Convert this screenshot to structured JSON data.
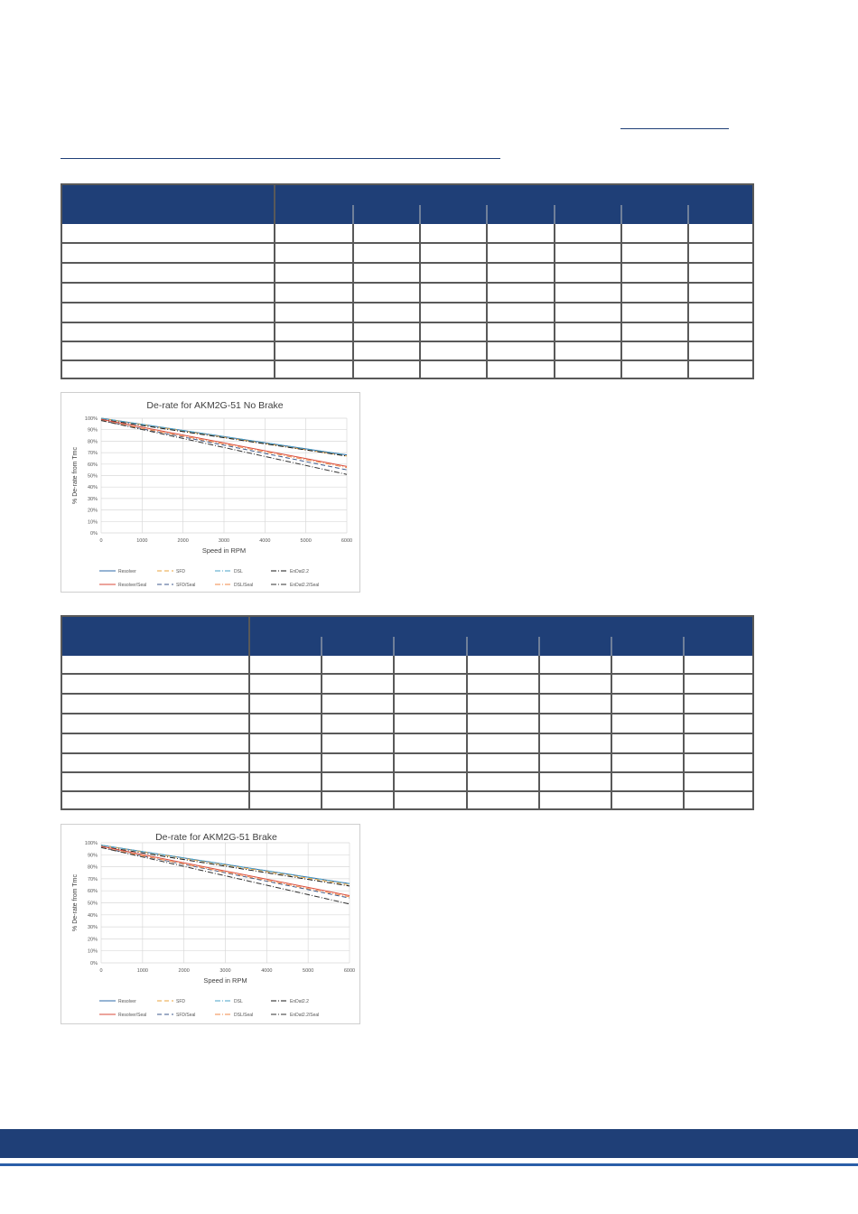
{
  "colors": {
    "header": "#1f3f77",
    "border": "#595959",
    "accent_line": "#2a5ea8"
  },
  "charts_meta": [
    {
      "legend": [
        "Resolver",
        "SFD",
        "DSL",
        "EnDat2.2",
        "Resolver/Seal",
        "SFD/Seal",
        "DSL/Seal",
        "EnDat2.2/Seal"
      ]
    }
  ],
  "chart_data": [
    {
      "type": "line",
      "title": "De-rate for AKM2G-51 No Brake",
      "xlabel": "Speed in RPM",
      "ylabel": "% De-rate from Tmc",
      "x": [
        0,
        6000
      ],
      "xticks": [
        "0",
        "1000",
        "2000",
        "3000",
        "4000",
        "5000",
        "6000"
      ],
      "yticks": [
        "0%",
        "10%",
        "20%",
        "30%",
        "40%",
        "50%",
        "60%",
        "70%",
        "80%",
        "90%",
        "100%"
      ],
      "xlim": [
        0,
        6000
      ],
      "ylim": [
        0,
        100
      ],
      "grid": true,
      "legend_position": "bottom",
      "series": [
        {
          "name": "Resolver",
          "color": "#2e6aa8",
          "dash": "",
          "values": [
            100,
            68
          ]
        },
        {
          "name": "SFD",
          "color": "#e8a33c",
          "dash": "5,3",
          "values": [
            100,
            67
          ]
        },
        {
          "name": "DSL",
          "color": "#4aa3c8",
          "dash": "6,2,1,2",
          "values": [
            100,
            68
          ]
        },
        {
          "name": "EnDat2.2",
          "color": "#1a1a1a",
          "dash": "6,2,1,2",
          "values": [
            99,
            67
          ]
        },
        {
          "name": "Resolver/Seal",
          "color": "#d94a3a",
          "dash": "",
          "values": [
            99,
            58
          ]
        },
        {
          "name": "SFD/Seal",
          "color": "#3c5a8c",
          "dash": "5,3",
          "values": [
            98,
            55
          ]
        },
        {
          "name": "DSL/Seal",
          "color": "#f08a4a",
          "dash": "6,2,1,2",
          "values": [
            98,
            57
          ]
        },
        {
          "name": "EnDat2.2/Seal",
          "color": "#333333",
          "dash": "6,2,1,2",
          "values": [
            98,
            51
          ]
        }
      ]
    },
    {
      "type": "line",
      "title": "De-rate for AKM2G-51 Brake",
      "xlabel": "Speed in RPM",
      "ylabel": "% De-rate from Tmc",
      "x": [
        0,
        6000
      ],
      "xticks": [
        "0",
        "1000",
        "2000",
        "3000",
        "4000",
        "5000",
        "6000"
      ],
      "yticks": [
        "0%",
        "10%",
        "20%",
        "30%",
        "40%",
        "50%",
        "60%",
        "70%",
        "80%",
        "90%",
        "100%"
      ],
      "xlim": [
        0,
        6000
      ],
      "ylim": [
        0,
        100
      ],
      "grid": true,
      "legend_position": "bottom",
      "series": [
        {
          "name": "Resolver",
          "color": "#2e6aa8",
          "dash": "",
          "values": [
            98,
            66
          ]
        },
        {
          "name": "SFD",
          "color": "#e8a33c",
          "dash": "5,3",
          "values": [
            98,
            65
          ]
        },
        {
          "name": "DSL",
          "color": "#4aa3c8",
          "dash": "6,2,1,2",
          "values": [
            98,
            66
          ]
        },
        {
          "name": "EnDat2.2",
          "color": "#1a1a1a",
          "dash": "6,2,1,2",
          "values": [
            97,
            64
          ]
        },
        {
          "name": "Resolver/Seal",
          "color": "#d94a3a",
          "dash": "",
          "values": [
            97,
            56
          ]
        },
        {
          "name": "SFD/Seal",
          "color": "#3c5a8c",
          "dash": "5,3",
          "values": [
            96,
            54
          ]
        },
        {
          "name": "DSL/Seal",
          "color": "#f08a4a",
          "dash": "6,2,1,2",
          "values": [
            96,
            55
          ]
        },
        {
          "name": "EnDat2.2/Seal",
          "color": "#333333",
          "dash": "6,2,1,2",
          "values": [
            96,
            49
          ]
        }
      ]
    }
  ]
}
